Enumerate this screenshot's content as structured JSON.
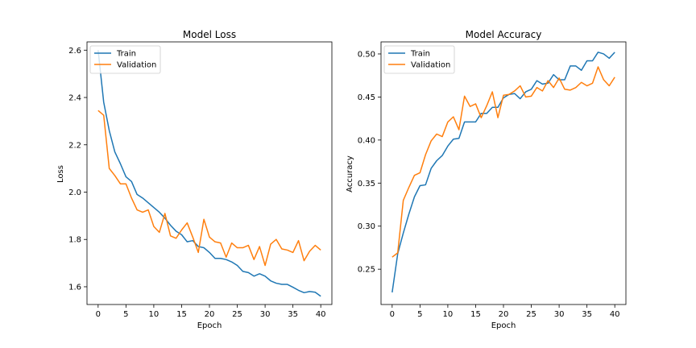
{
  "chart_data": [
    {
      "type": "line",
      "title": "Model Loss",
      "xlabel": "Epoch",
      "ylabel": "Loss",
      "xlim": [
        -2,
        42
      ],
      "ylim": [
        1.525,
        2.635
      ],
      "xticks": [
        0,
        5,
        10,
        15,
        20,
        25,
        30,
        35,
        40
      ],
      "yticks": [
        1.6,
        1.8,
        2.0,
        2.2,
        2.4,
        2.6
      ],
      "ytick_labels": [
        "1.6",
        "1.8",
        "2.0",
        "2.2",
        "2.4",
        "2.6"
      ],
      "legend": {
        "location": "top-left",
        "entries": [
          "Train",
          "Validation"
        ]
      },
      "grid": false,
      "x": [
        0,
        1,
        2,
        3,
        4,
        5,
        6,
        7,
        8,
        9,
        10,
        11,
        12,
        13,
        14,
        15,
        16,
        17,
        18,
        19,
        20,
        21,
        22,
        23,
        24,
        25,
        26,
        27,
        28,
        29,
        30,
        31,
        32,
        33,
        34,
        35,
        36,
        37,
        38,
        39,
        40
      ],
      "series": [
        {
          "name": "Train",
          "color": "#1f77b4",
          "values": [
            2.6,
            2.38,
            2.26,
            2.17,
            2.12,
            2.065,
            2.045,
            1.99,
            1.975,
            1.955,
            1.935,
            1.915,
            1.89,
            1.86,
            1.835,
            1.82,
            1.79,
            1.795,
            1.77,
            1.765,
            1.745,
            1.72,
            1.72,
            1.715,
            1.705,
            1.69,
            1.665,
            1.66,
            1.645,
            1.655,
            1.645,
            1.625,
            1.615,
            1.61,
            1.61,
            1.598,
            1.585,
            1.575,
            1.58,
            1.577,
            1.56
          ]
        },
        {
          "name": "Validation",
          "color": "#ff7f0e",
          "values": [
            2.345,
            2.325,
            2.1,
            2.07,
            2.035,
            2.035,
            1.975,
            1.925,
            1.915,
            1.925,
            1.855,
            1.83,
            1.91,
            1.815,
            1.805,
            1.84,
            1.87,
            1.81,
            1.745,
            1.885,
            1.81,
            1.79,
            1.785,
            1.725,
            1.785,
            1.765,
            1.765,
            1.775,
            1.715,
            1.77,
            1.69,
            1.78,
            1.8,
            1.76,
            1.755,
            1.745,
            1.795,
            1.71,
            1.75,
            1.775,
            1.755
          ]
        }
      ]
    },
    {
      "type": "line",
      "title": "Model Accuracy",
      "xlabel": "Epoch",
      "ylabel": "Accuracy",
      "xlim": [
        -2,
        42
      ],
      "ylim": [
        0.209,
        0.514
      ],
      "xticks": [
        0,
        5,
        10,
        15,
        20,
        25,
        30,
        35,
        40
      ],
      "yticks": [
        0.25,
        0.3,
        0.35,
        0.4,
        0.45,
        0.5
      ],
      "ytick_labels": [
        "0.25",
        "0.30",
        "0.35",
        "0.40",
        "0.45",
        "0.50"
      ],
      "legend": {
        "location": "top-left",
        "entries": [
          "Train",
          "Validation"
        ]
      },
      "grid": false,
      "x": [
        0,
        1,
        2,
        3,
        4,
        5,
        6,
        7,
        8,
        9,
        10,
        11,
        12,
        13,
        14,
        15,
        16,
        17,
        18,
        19,
        20,
        21,
        22,
        23,
        24,
        25,
        26,
        27,
        28,
        29,
        30,
        31,
        32,
        33,
        34,
        35,
        36,
        37,
        38,
        39,
        40
      ],
      "series": [
        {
          "name": "Train",
          "color": "#1f77b4",
          "values": [
            0.223,
            0.268,
            0.292,
            0.314,
            0.334,
            0.347,
            0.348,
            0.367,
            0.376,
            0.382,
            0.393,
            0.401,
            0.402,
            0.421,
            0.421,
            0.421,
            0.431,
            0.431,
            0.438,
            0.438,
            0.449,
            0.453,
            0.454,
            0.448,
            0.456,
            0.459,
            0.469,
            0.465,
            0.466,
            0.476,
            0.47,
            0.47,
            0.486,
            0.486,
            0.481,
            0.492,
            0.492,
            0.502,
            0.5,
            0.495,
            0.502
          ]
        },
        {
          "name": "Validation",
          "color": "#ff7f0e",
          "values": [
            0.264,
            0.269,
            0.33,
            0.345,
            0.359,
            0.362,
            0.383,
            0.399,
            0.407,
            0.404,
            0.421,
            0.427,
            0.412,
            0.451,
            0.439,
            0.442,
            0.426,
            0.44,
            0.456,
            0.426,
            0.452,
            0.453,
            0.457,
            0.463,
            0.45,
            0.451,
            0.461,
            0.457,
            0.469,
            0.461,
            0.472,
            0.459,
            0.458,
            0.461,
            0.467,
            0.463,
            0.466,
            0.485,
            0.47,
            0.463,
            0.473
          ]
        }
      ]
    }
  ]
}
